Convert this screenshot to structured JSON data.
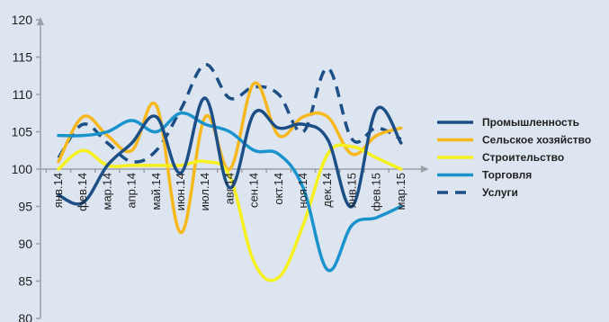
{
  "chart_data": {
    "type": "line",
    "categories": [
      "янв.14",
      "фев.14",
      "мар.14",
      "апр.14",
      "май.14",
      "июн.14",
      "июл.14",
      "авг.14",
      "сен.14",
      "окт.14",
      "ноя.14",
      "дек.14",
      "янв.15",
      "фев.15",
      "мар.15"
    ],
    "ylim": [
      80,
      120
    ],
    "yticks": [
      80,
      85,
      90,
      95,
      100,
      105,
      110,
      115,
      120
    ],
    "x_axis_crosses_at": 100,
    "legend_position": "right",
    "series": [
      {
        "name": "Промышленность",
        "color": "#1c4f86",
        "dash": "solid",
        "values": [
          96.5,
          95.5,
          100.5,
          103.5,
          107.0,
          99.5,
          109.5,
          97.5,
          107.5,
          105.5,
          106.0,
          104.0,
          95.0,
          108.0,
          103.5
        ]
      },
      {
        "name": "Сельское хозяйство",
        "color": "#f7b81e",
        "dash": "solid",
        "values": [
          101.0,
          107.0,
          104.5,
          102.5,
          108.5,
          91.5,
          107.0,
          100.0,
          111.5,
          104.5,
          107.0,
          107.0,
          102.0,
          104.5,
          105.5
        ]
      },
      {
        "name": "Строительство",
        "color": "#f5f01e",
        "dash": "solid",
        "values": [
          100.0,
          102.5,
          100.5,
          100.5,
          100.5,
          100.5,
          101.0,
          99.0,
          87.5,
          85.5,
          92.5,
          102.0,
          103.0,
          101.5,
          100.0
        ]
      },
      {
        "name": "Торговля",
        "color": "#1a93cc",
        "dash": "solid",
        "values": [
          104.5,
          104.5,
          105.0,
          106.5,
          105.0,
          107.5,
          106.0,
          105.0,
          102.5,
          102.0,
          97.5,
          86.5,
          92.5,
          93.5,
          95.0
        ]
      },
      {
        "name": "Услуги",
        "color": "#1c4f86",
        "dash": "dashed",
        "values": [
          101.5,
          106.0,
          103.5,
          101.0,
          102.5,
          108.0,
          114.0,
          109.5,
          111.0,
          110.0,
          105.0,
          113.5,
          104.0,
          105.5,
          104.0
        ]
      }
    ]
  }
}
